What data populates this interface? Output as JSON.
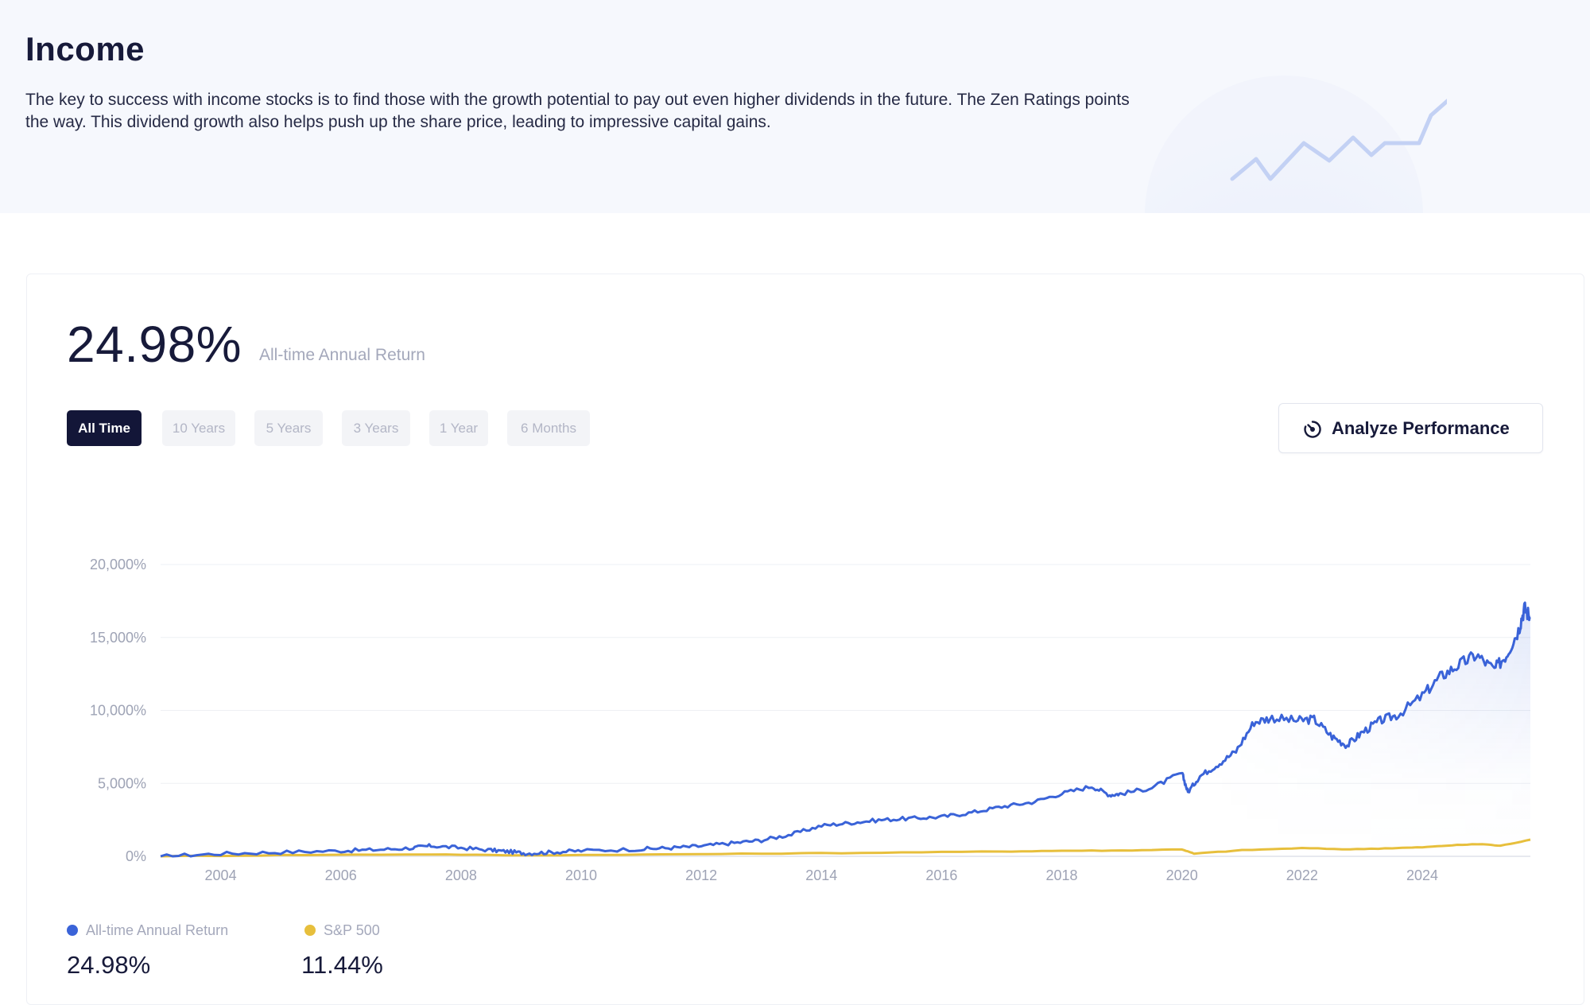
{
  "header": {
    "title": "Income",
    "description": "The key to success with income stocks is to find those with the growth potential to pay out even higher dividends in the future. The Zen Ratings points the way. This dividend growth also helps push up the share price, leading to impressive capital gains."
  },
  "summary": {
    "return_value": "24.98%",
    "return_label": "All-time Annual Return"
  },
  "range_tabs": [
    {
      "label": "All Time",
      "active": true
    },
    {
      "label": "10 Years",
      "active": false
    },
    {
      "label": "5 Years",
      "active": false
    },
    {
      "label": "3 Years",
      "active": false
    },
    {
      "label": "1 Year",
      "active": false
    },
    {
      "label": "6 Months",
      "active": false
    }
  ],
  "analyze_button": {
    "label": "Analyze Performance",
    "icon": "performance-dial-icon"
  },
  "legend": [
    {
      "name": "All-time Annual Return",
      "value": "24.98%",
      "color": "#3a63d8"
    },
    {
      "name": "S&P 500",
      "value": "11.44%",
      "color": "#e7bf3c"
    }
  ],
  "colors": {
    "primary": "#131638",
    "accent_blue": "#3a63d8",
    "accent_gold": "#e7bf3c"
  },
  "chart_data": {
    "type": "line",
    "y_tick_labels": [
      "0%",
      "5,000%",
      "10,000%",
      "15,000%",
      "20,000%"
    ],
    "x_tick_labels": [
      "2004",
      "2006",
      "2008",
      "2010",
      "2012",
      "2014",
      "2016",
      "2018",
      "2020",
      "2022",
      "2024"
    ],
    "ylim": [
      0,
      20000
    ],
    "xlim": [
      2003.0,
      2025.8
    ],
    "grid": true,
    "series": [
      {
        "name": "All-time Annual Return",
        "color": "#3a63d8",
        "x": [
          2003.0,
          2004.0,
          2005.0,
          2006.0,
          2006.6,
          2007.2,
          2007.5,
          2008.0,
          2008.5,
          2008.8,
          2009.1,
          2009.5,
          2010.0,
          2011.0,
          2011.5,
          2012.0,
          2012.5,
          2013.0,
          2013.5,
          2014.0,
          2014.5,
          2015.0,
          2015.5,
          2016.0,
          2016.5,
          2017.0,
          2017.5,
          2018.0,
          2018.5,
          2018.8,
          2019.0,
          2019.5,
          2020.0,
          2020.1,
          2020.3,
          2020.6,
          2020.9,
          2021.2,
          2021.5,
          2021.9,
          2022.2,
          2022.5,
          2022.75,
          2023.0,
          2023.3,
          2023.6,
          2024.0,
          2024.3,
          2024.6,
          2024.9,
          2025.2,
          2025.4,
          2025.6,
          2025.7,
          2025.8
        ],
        "values": [
          0,
          180,
          280,
          380,
          450,
          580,
          720,
          580,
          420,
          320,
          200,
          280,
          380,
          500,
          580,
          700,
          900,
          1100,
          1500,
          2100,
          2300,
          2500,
          2600,
          2700,
          3000,
          3400,
          3700,
          4300,
          4800,
          4200,
          4300,
          4700,
          5700,
          4400,
          5500,
          6300,
          7200,
          9200,
          9500,
          9300,
          9400,
          8200,
          7600,
          8500,
          9300,
          9700,
          11000,
          12300,
          13100,
          13800,
          12800,
          13800,
          15500,
          17000,
          16400
        ]
      },
      {
        "name": "S&P 500",
        "color": "#e7bf3c",
        "x": [
          2003.0,
          2005.0,
          2007.5,
          2009.0,
          2011.0,
          2013.0,
          2015.0,
          2017.0,
          2018.0,
          2019.0,
          2020.0,
          2020.2,
          2021.0,
          2022.0,
          2022.8,
          2023.5,
          2024.0,
          2024.5,
          2025.0,
          2025.3,
          2025.8
        ],
        "values": [
          0,
          80,
          140,
          60,
          120,
          180,
          250,
          330,
          380,
          400,
          480,
          180,
          420,
          560,
          480,
          560,
          620,
          760,
          840,
          720,
          1144
        ]
      }
    ]
  }
}
